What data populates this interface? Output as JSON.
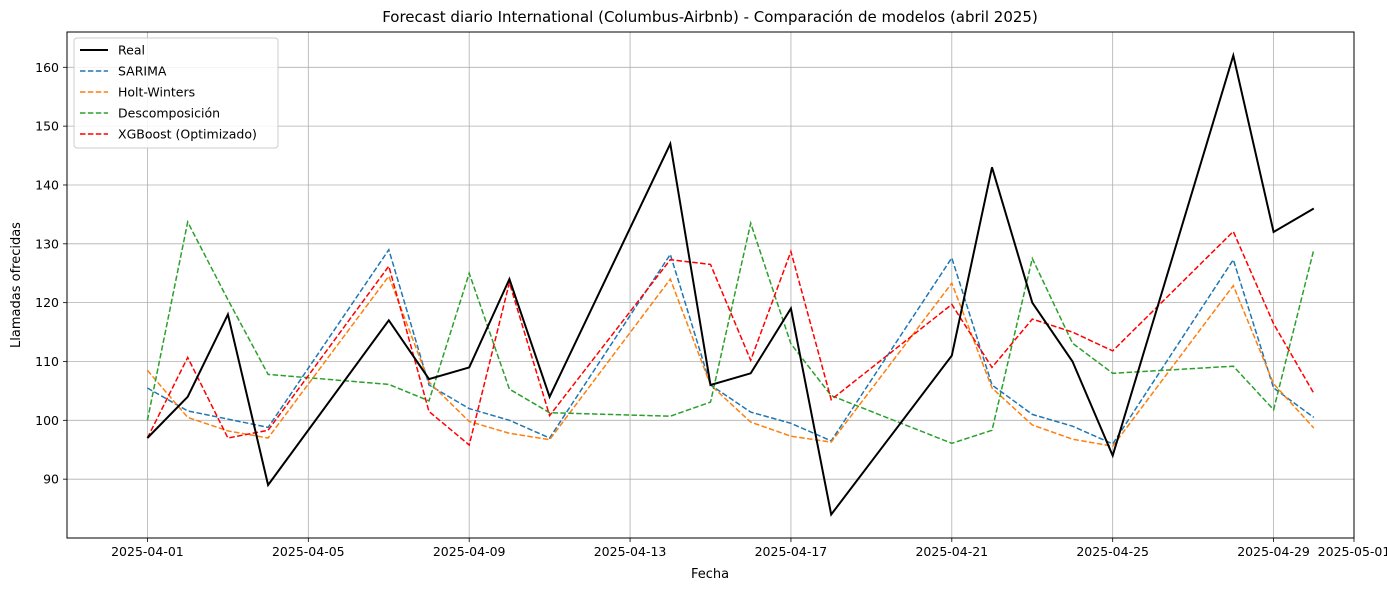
{
  "chart_data": {
    "type": "line",
    "title": "Forecast diario International (Columbus-Airbnb) - Comparación de modelos (abril 2025)",
    "xlabel": "Fecha",
    "ylabel": "Llamadas ofrecidas",
    "xlim": [
      "2025-03-30",
      "2025-05-01"
    ],
    "ylim": [
      80,
      166
    ],
    "grid": true,
    "legend_position": "top-left",
    "x_ticks": [
      "2025-04-01",
      "2025-04-05",
      "2025-04-09",
      "2025-04-13",
      "2025-04-17",
      "2025-04-21",
      "2025-04-25",
      "2025-04-29",
      "2025-05-01"
    ],
    "y_ticks": [
      90,
      100,
      110,
      120,
      130,
      140,
      150,
      160
    ],
    "series": [
      {
        "name": "Real",
        "color": "#000000",
        "style": "solid",
        "points": [
          [
            "2025-04-01",
            97
          ],
          [
            "2025-04-02",
            104
          ],
          [
            "2025-04-03",
            118
          ],
          [
            "2025-04-04",
            89
          ],
          [
            "2025-04-07",
            117
          ],
          [
            "2025-04-08",
            107
          ],
          [
            "2025-04-09",
            109
          ],
          [
            "2025-04-10",
            124
          ],
          [
            "2025-04-11",
            104
          ],
          [
            "2025-04-14",
            147
          ],
          [
            "2025-04-15",
            106
          ],
          [
            "2025-04-16",
            108
          ],
          [
            "2025-04-17",
            119
          ],
          [
            "2025-04-18",
            84
          ],
          [
            "2025-04-21",
            111
          ],
          [
            "2025-04-22",
            143
          ],
          [
            "2025-04-23",
            120
          ],
          [
            "2025-04-24",
            110
          ],
          [
            "2025-04-25",
            94
          ],
          [
            "2025-04-28",
            162
          ],
          [
            "2025-04-29",
            132
          ],
          [
            "2025-04-30",
            136
          ]
        ]
      },
      {
        "name": "SARIMA",
        "color": "#1f77b4",
        "style": "dashed",
        "points": [
          [
            "2025-04-01",
            105.5
          ],
          [
            "2025-04-02",
            101.6
          ],
          [
            "2025-04-03",
            100.2
          ],
          [
            "2025-04-04",
            98.8
          ],
          [
            "2025-04-07",
            129
          ],
          [
            "2025-04-08",
            106
          ],
          [
            "2025-04-09",
            102
          ],
          [
            "2025-04-10",
            100
          ],
          [
            "2025-04-11",
            97
          ],
          [
            "2025-04-14",
            128.2
          ],
          [
            "2025-04-15",
            106
          ],
          [
            "2025-04-16",
            101.4
          ],
          [
            "2025-04-17",
            99.5
          ],
          [
            "2025-04-18",
            96.5
          ],
          [
            "2025-04-21",
            127.6
          ],
          [
            "2025-04-22",
            106
          ],
          [
            "2025-04-23",
            101
          ],
          [
            "2025-04-24",
            99
          ],
          [
            "2025-04-25",
            96
          ],
          [
            "2025-04-28",
            127.3
          ],
          [
            "2025-04-29",
            105.5
          ],
          [
            "2025-04-30",
            100.5
          ]
        ]
      },
      {
        "name": "Holt-Winters",
        "color": "#ff7f0e",
        "style": "dashed",
        "points": [
          [
            "2025-04-01",
            108.5
          ],
          [
            "2025-04-02",
            100.5
          ],
          [
            "2025-04-03",
            98.2
          ],
          [
            "2025-04-04",
            97
          ],
          [
            "2025-04-07",
            124.5
          ],
          [
            "2025-04-08",
            106.5
          ],
          [
            "2025-04-09",
            99.8
          ],
          [
            "2025-04-10",
            97.8
          ],
          [
            "2025-04-11",
            96.7
          ],
          [
            "2025-04-14",
            124
          ],
          [
            "2025-04-15",
            106
          ],
          [
            "2025-04-16",
            99.7
          ],
          [
            "2025-04-17",
            97.3
          ],
          [
            "2025-04-18",
            96.3
          ],
          [
            "2025-04-21",
            123.3
          ],
          [
            "2025-04-22",
            105.5
          ],
          [
            "2025-04-23",
            99.2
          ],
          [
            "2025-04-24",
            96.8
          ],
          [
            "2025-04-25",
            95.6
          ],
          [
            "2025-04-28",
            122.9
          ],
          [
            "2025-04-29",
            106.2
          ],
          [
            "2025-04-30",
            98.7
          ]
        ]
      },
      {
        "name": "Descomposición",
        "color": "#2ca02c",
        "style": "dashed",
        "points": [
          [
            "2025-04-01",
            100
          ],
          [
            "2025-04-02",
            133.7
          ],
          [
            "2025-04-03",
            120.5
          ],
          [
            "2025-04-04",
            107.8
          ],
          [
            "2025-04-07",
            106.1
          ],
          [
            "2025-04-08",
            103.3
          ],
          [
            "2025-04-09",
            125
          ],
          [
            "2025-04-10",
            105.3
          ],
          [
            "2025-04-11",
            101.3
          ],
          [
            "2025-04-14",
            100.7
          ],
          [
            "2025-04-15",
            103.1
          ],
          [
            "2025-04-16",
            133.5
          ],
          [
            "2025-04-17",
            113
          ],
          [
            "2025-04-18",
            104.2
          ],
          [
            "2025-04-21",
            96.1
          ],
          [
            "2025-04-22",
            98.3
          ],
          [
            "2025-04-23",
            127.5
          ],
          [
            "2025-04-24",
            113.1
          ],
          [
            "2025-04-25",
            108
          ],
          [
            "2025-04-28",
            109.2
          ],
          [
            "2025-04-29",
            101.8
          ],
          [
            "2025-04-30",
            129
          ]
        ]
      },
      {
        "name": "XGBoost (Optimizado)",
        "color": "#ff0000",
        "style": "dashed",
        "points": [
          [
            "2025-04-01",
            97
          ],
          [
            "2025-04-02",
            110.7
          ],
          [
            "2025-04-03",
            97
          ],
          [
            "2025-04-04",
            98.3
          ],
          [
            "2025-04-07",
            126.2
          ],
          [
            "2025-04-08",
            101.5
          ],
          [
            "2025-04-09",
            95.8
          ],
          [
            "2025-04-10",
            123.4
          ],
          [
            "2025-04-11",
            100.8
          ],
          [
            "2025-04-14",
            127.3
          ],
          [
            "2025-04-15",
            126.5
          ],
          [
            "2025-04-16",
            110.2
          ],
          [
            "2025-04-17",
            128.7
          ],
          [
            "2025-04-18",
            103.5
          ],
          [
            "2025-04-21",
            119.7
          ],
          [
            "2025-04-22",
            109
          ],
          [
            "2025-04-23",
            117.2
          ],
          [
            "2025-04-24",
            115
          ],
          [
            "2025-04-25",
            111.8
          ],
          [
            "2025-04-28",
            132.1
          ],
          [
            "2025-04-29",
            116.4
          ],
          [
            "2025-04-30",
            104.6
          ]
        ]
      }
    ]
  }
}
